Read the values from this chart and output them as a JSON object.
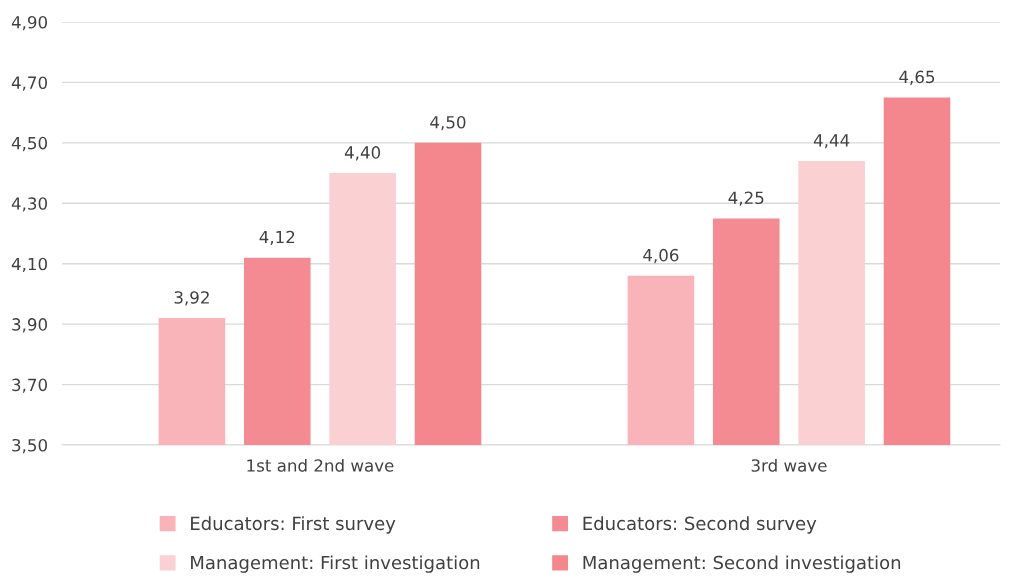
{
  "chart_data": {
    "type": "bar",
    "categories": [
      "1st and 2nd wave",
      "3rd wave"
    ],
    "series": [
      {
        "name": "Educators: First survey",
        "color": "#f8b4b9",
        "values": [
          3.92,
          4.06
        ],
        "value_labels": [
          "3,92",
          "4,06"
        ]
      },
      {
        "name": "Educators: Second survey",
        "color": "#f48b92",
        "values": [
          4.12,
          4.25
        ],
        "value_labels": [
          "4,12",
          "4,25"
        ]
      },
      {
        "name": "Management: First investigation",
        "color": "#fbd0d3",
        "values": [
          4.4,
          4.44
        ],
        "value_labels": [
          "4,40",
          "4,44"
        ]
      },
      {
        "name": "Management: Second investigation",
        "color": "#f4868e",
        "values": [
          4.5,
          4.65
        ],
        "value_labels": [
          "4,50",
          "4,65"
        ]
      }
    ],
    "ylim": [
      3.5,
      4.9
    ],
    "yticks": [
      {
        "value": 3.5,
        "label": "3,50"
      },
      {
        "value": 3.7,
        "label": "3,70"
      },
      {
        "value": 3.9,
        "label": "3,90"
      },
      {
        "value": 4.1,
        "label": "4,10"
      },
      {
        "value": 4.3,
        "label": "4,30"
      },
      {
        "value": 4.5,
        "label": "4,50"
      },
      {
        "value": 4.7,
        "label": "4,70"
      },
      {
        "value": 4.9,
        "label": "4,90"
      }
    ],
    "grid": "y",
    "legend": "bottom"
  }
}
